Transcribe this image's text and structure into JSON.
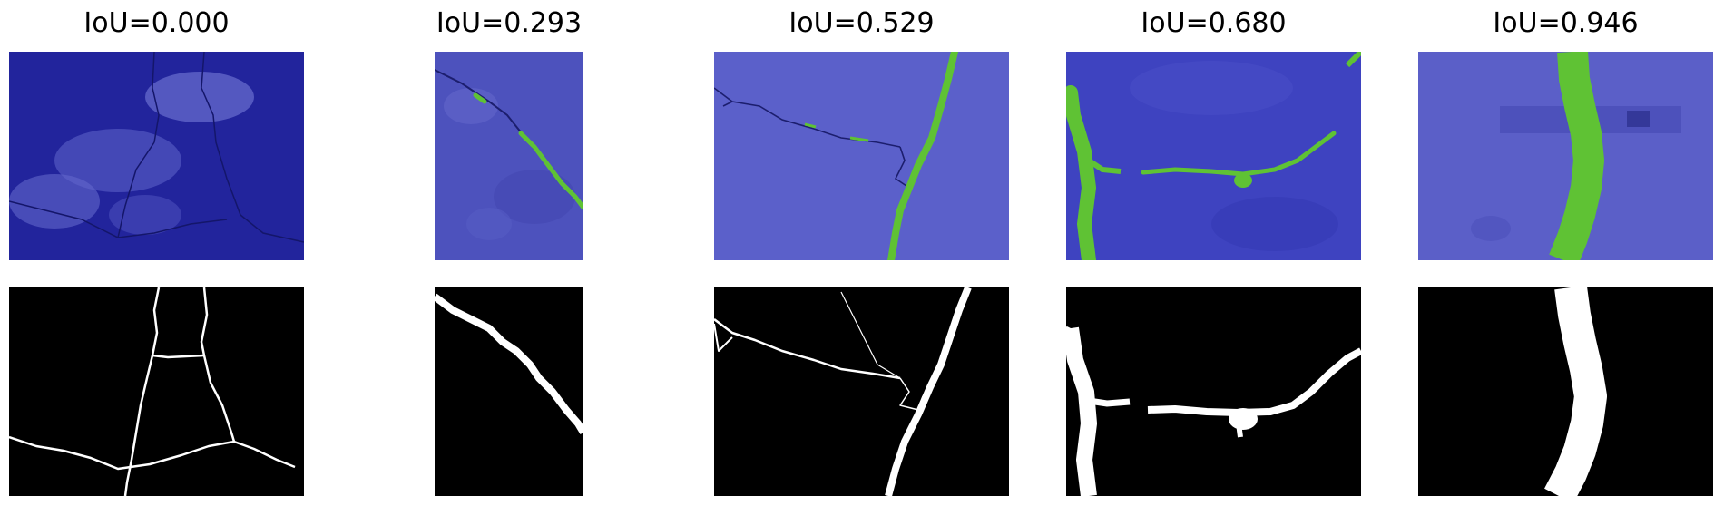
{
  "figure": {
    "columns": [
      {
        "title": "IoU=0.000",
        "iou": 0.0
      },
      {
        "title": "IoU=0.293",
        "iou": 0.293
      },
      {
        "title": "IoU=0.529",
        "iou": 0.529
      },
      {
        "title": "IoU=0.680",
        "iou": 0.68
      },
      {
        "title": "IoU=0.946",
        "iou": 0.946
      }
    ],
    "colors": {
      "overlay_blue": "#2d2fb4",
      "overlay_blue_light": "#5a5fd2",
      "prediction_green": "#5fc234",
      "mask_background": "#000000",
      "mask_crack": "#ffffff"
    }
  }
}
